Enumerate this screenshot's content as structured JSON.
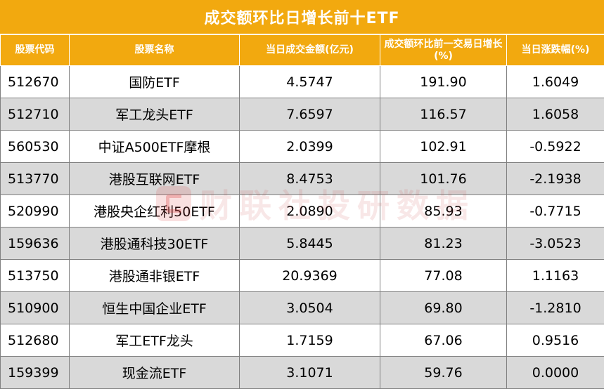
{
  "title": "成交额环比日增长前十ETF",
  "headers": [
    "股票代码",
    "股票名称",
    "当日成交金额(亿元)",
    "成交额环比前一交易日增长(%)",
    "当日涨跌幅(%)"
  ],
  "rows": [
    {
      "code": "512670",
      "name": "国防ETF",
      "turnover": "4.5747",
      "growth": "191.90",
      "change": "1.6049"
    },
    {
      "code": "512710",
      "name": "军工龙头ETF",
      "turnover": "7.6597",
      "growth": "116.57",
      "change": "1.6058"
    },
    {
      "code": "560530",
      "name": "中证A500ETF摩根",
      "turnover": "2.0399",
      "growth": "102.91",
      "change": "-0.5922"
    },
    {
      "code": "513770",
      "name": "港股互联网ETF",
      "turnover": "8.4753",
      "growth": "101.76",
      "change": "-2.1938"
    },
    {
      "code": "520990",
      "name": "港股央企红利50ETF",
      "turnover": "2.0890",
      "growth": "85.93",
      "change": "-0.7715"
    },
    {
      "code": "159636",
      "name": "港股通科技30ETF",
      "turnover": "5.8445",
      "growth": "81.23",
      "change": "-3.0523"
    },
    {
      "code": "513750",
      "name": "港股通非银ETF",
      "turnover": "20.9369",
      "growth": "77.08",
      "change": "1.1163"
    },
    {
      "code": "510900",
      "name": "恒生中国企业ETF",
      "turnover": "3.0504",
      "growth": "69.80",
      "change": "-1.2810"
    },
    {
      "code": "512680",
      "name": "军工ETF龙头",
      "turnover": "1.7159",
      "growth": "67.06",
      "change": "0.9516"
    },
    {
      "code": "159399",
      "name": "现金流ETF",
      "turnover": "3.1071",
      "growth": "59.76",
      "change": "0.0000"
    }
  ],
  "watermark": "财联社投研数据"
}
